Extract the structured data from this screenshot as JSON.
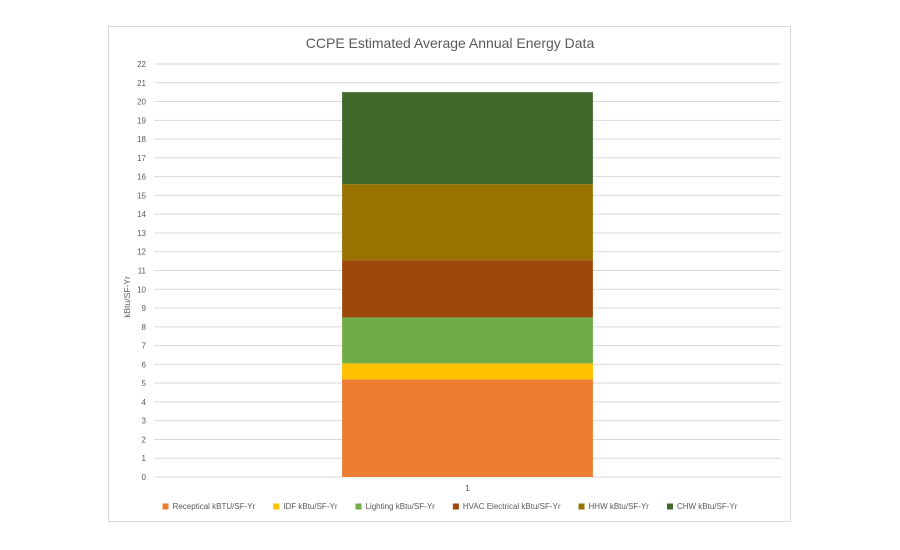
{
  "chart_data": {
    "type": "bar",
    "stacked": true,
    "title": "CCPE Estimated Average Annual Energy Data",
    "ylabel": "kBtu/SF-Yr",
    "xlabel": "",
    "categories": [
      "1"
    ],
    "ylim": [
      0,
      22
    ],
    "ytick_step": 1,
    "grid": true,
    "legend_position": "bottom",
    "series": [
      {
        "name": "Receptical kBTU/SF-Yr",
        "values": [
          5.2
        ],
        "color": "#ED7D31"
      },
      {
        "name": "IDF kBtu/SF-Yr",
        "values": [
          0.85
        ],
        "color": "#FFC000"
      },
      {
        "name": "Lighting kBtu/SF-Yr",
        "values": [
          2.45
        ],
        "color": "#70AD47"
      },
      {
        "name": "HVAC Electrical kBtu/SF-Yr",
        "values": [
          3.05
        ],
        "color": "#9E480E"
      },
      {
        "name": "HHW kBtu/SF-Yr",
        "values": [
          4.05
        ],
        "color": "#997300"
      },
      {
        "name": "CHW kBtu/SF-Yr",
        "values": [
          4.9
        ],
        "color": "#43682B"
      }
    ]
  }
}
